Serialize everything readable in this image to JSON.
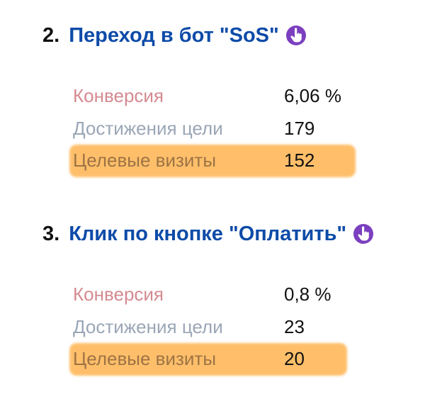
{
  "goals": [
    {
      "number": "2.",
      "title": "Переход в бот \"SoS\"",
      "icon": "pointing-hand-icon",
      "metrics": {
        "conversion_label": "Конверсия",
        "conversion_value": "6,06 %",
        "achievements_label": "Достижения цели",
        "achievements_value": "179",
        "visits_label": "Целевые визиты",
        "visits_value": "152"
      }
    },
    {
      "number": "3.",
      "title": "Клик по кнопке \"Оплатить\"",
      "icon": "pointing-hand-icon",
      "metrics": {
        "conversion_label": "Конверсия",
        "conversion_value": "0,8 %",
        "achievements_label": "Достижения цели",
        "achievements_value": "23",
        "visits_label": "Целевые визиты",
        "visits_value": "20"
      }
    }
  ],
  "colors": {
    "title": "#0d4ba8",
    "icon_background": "#7b3fbf",
    "highlight": "#ffbf6a",
    "conversion_label": "#d48a90",
    "achievements_label": "#9aa6b6",
    "visits_label": "#9d7345"
  }
}
